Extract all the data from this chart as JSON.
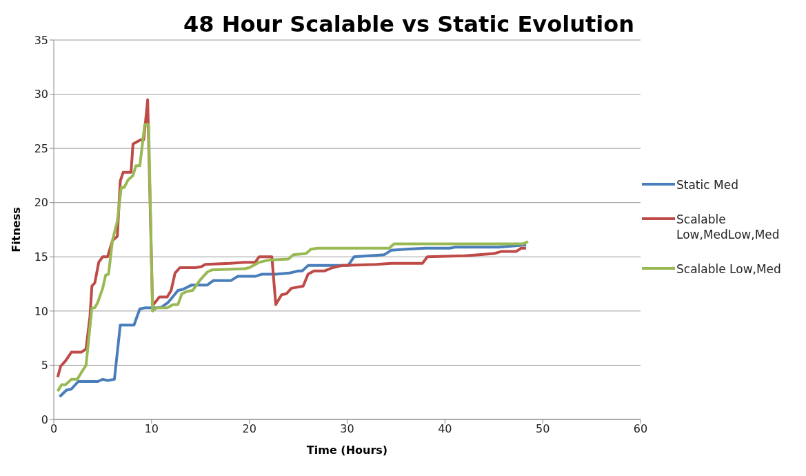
{
  "chart_data": {
    "type": "line",
    "title": "48 Hour Scalable vs Static Evolution",
    "xlabel": "Time (Hours)",
    "ylabel": "Fitness",
    "xlim": [
      0,
      60
    ],
    "xticks": [
      0,
      10,
      20,
      30,
      40,
      50,
      60
    ],
    "ylim": [
      0,
      35
    ],
    "yticks": [
      0,
      5,
      10,
      15,
      20,
      25,
      30,
      35
    ],
    "grid": "y",
    "legend": "right",
    "marker": "none",
    "line_style": "solid",
    "series": [
      {
        "name": "Static Med",
        "color": "#4a7ebb",
        "x": [
          0.6,
          1.3,
          1.8,
          2.5,
          4.5,
          5,
          5.5,
          6.2,
          6.8,
          8.2,
          8.8,
          9.4,
          10.5,
          11,
          11.7,
          12.7,
          13.2,
          14.1,
          15.7,
          16.3,
          18.1,
          18.8,
          20.6,
          21.3,
          22.7,
          24.1,
          25,
          25.4,
          26,
          30.1,
          30.7,
          33.8,
          34.5,
          36,
          38,
          40.5,
          41.1,
          45.5,
          48.3
        ],
        "values": [
          2.1,
          2.7,
          2.8,
          3.5,
          3.5,
          3.7,
          3.6,
          3.7,
          8.7,
          8.7,
          10.2,
          10.3,
          10.3,
          10.35,
          10.8,
          11.9,
          12,
          12.4,
          12.4,
          12.8,
          12.8,
          13.2,
          13.2,
          13.4,
          13.4,
          13.5,
          13.7,
          13.7,
          14.2,
          14.2,
          15,
          15.2,
          15.6,
          15.7,
          15.8,
          15.8,
          15.9,
          15.9,
          16.1
        ]
      },
      {
        "name": "Scalable Low,MedLow,Med",
        "color": "#be4b48",
        "x": [
          0.4,
          0.7,
          1.2,
          1.8,
          2.8,
          3.3,
          3.7,
          3.9,
          4.2,
          4.6,
          5,
          5.5,
          6,
          6.5,
          6.8,
          7.1,
          7.9,
          8.1,
          8.9,
          9.2,
          9.6,
          10.1,
          10.8,
          11.6,
          12,
          12.4,
          12.9,
          14.5,
          15.1,
          15.5,
          18,
          19.5,
          20.6,
          21,
          22.3,
          22.7,
          23.3,
          23.8,
          24.3,
          25.5,
          26,
          26.6,
          27.7,
          28.5,
          29.5,
          33,
          34.5,
          37.7,
          38.2,
          42,
          43.5,
          45,
          45.8,
          47.3,
          47.8,
          48.3
        ],
        "values": [
          3.9,
          4.9,
          5.4,
          6.2,
          6.2,
          6.5,
          9.5,
          12.3,
          12.6,
          14.5,
          15,
          15,
          16.5,
          16.9,
          22,
          22.8,
          22.8,
          25.4,
          25.8,
          25.8,
          29.5,
          10.5,
          11.3,
          11.3,
          11.9,
          13.5,
          14,
          14,
          14.1,
          14.3,
          14.4,
          14.5,
          14.5,
          15,
          15,
          10.6,
          11.5,
          11.6,
          12.1,
          12.3,
          13.4,
          13.7,
          13.7,
          14,
          14.2,
          14.3,
          14.4,
          14.4,
          15,
          15.1,
          15.2,
          15.3,
          15.5,
          15.5,
          15.8,
          15.8
        ]
      },
      {
        "name": "Scalable Low,Med",
        "color": "#98b954",
        "x": [
          0.4,
          0.8,
          1.2,
          1.8,
          2.4,
          2.8,
          3.3,
          3.9,
          4.2,
          4.5,
          5,
          5.3,
          5.6,
          6,
          6.5,
          6.9,
          7.2,
          7.6,
          8.1,
          8.4,
          8.8,
          9.3,
          9.7,
          10.1,
          10.5,
          11.6,
          12.2,
          12.7,
          13.1,
          13.6,
          14.2,
          15,
          15.7,
          16.2,
          19.5,
          20,
          21,
          22,
          24,
          24.5,
          25.8,
          26.3,
          27,
          31,
          34.3,
          34.8,
          48,
          48.5
        ],
        "values": [
          2.6,
          3.2,
          3.2,
          3.7,
          3.7,
          4.3,
          5,
          10.3,
          10.3,
          10.8,
          12.1,
          13.3,
          13.4,
          16.5,
          18.3,
          21.4,
          21.4,
          22.1,
          22.5,
          23.4,
          23.4,
          27.2,
          27.2,
          10,
          10.3,
          10.3,
          10.6,
          10.6,
          11.6,
          11.8,
          11.9,
          12.9,
          13.6,
          13.8,
          13.9,
          14,
          14.5,
          14.7,
          14.8,
          15.2,
          15.3,
          15.7,
          15.8,
          15.8,
          15.8,
          16.2,
          16.2,
          16.4
        ]
      }
    ]
  }
}
